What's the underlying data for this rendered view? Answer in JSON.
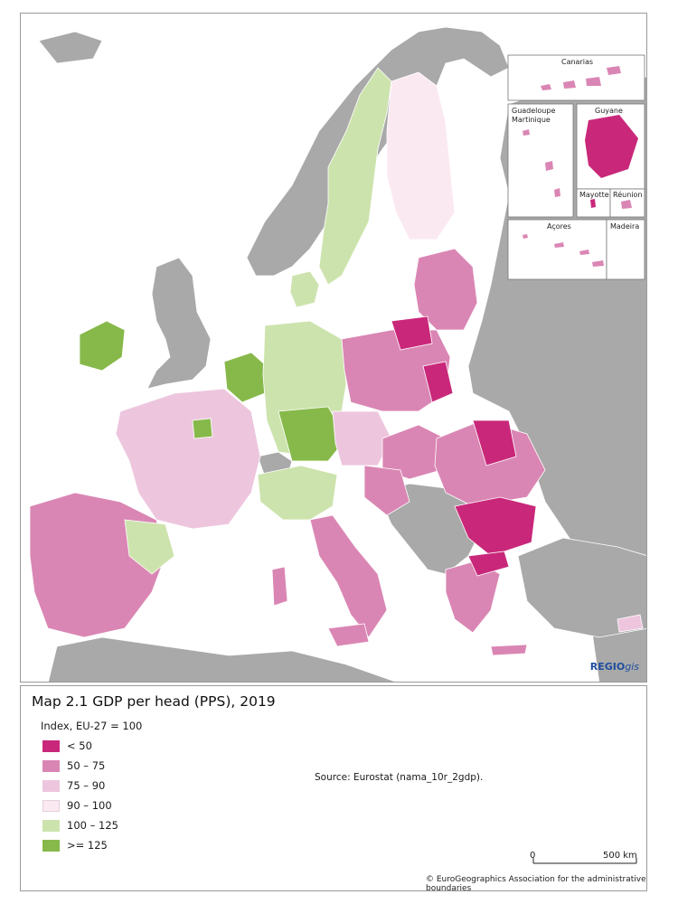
{
  "map": {
    "title": "Map 2.1 GDP per head (PPS), 2019",
    "brand_main": "REGIO",
    "brand_suffix": "gis",
    "insets": [
      "Canarias",
      "Guadeloupe",
      "Martinique",
      "Guyane",
      "Mayotte",
      "Réunion",
      "Açores",
      "Madeira"
    ]
  },
  "legend": {
    "heading": "Index, EU-27 = 100",
    "classes": [
      {
        "label": "< 50",
        "color": "#c9287a"
      },
      {
        "label": "50 – 75",
        "color": "#da86b4"
      },
      {
        "label": "75 – 90",
        "color": "#edc6de"
      },
      {
        "label": "90 – 100",
        "color": "#fbe9f2"
      },
      {
        "label": "100 – 125",
        "color": "#cde3ad"
      },
      {
        "label": ">= 125",
        "color": "#86b94a"
      }
    ]
  },
  "source": "Source: Eurostat (nama_10r_2gdp).",
  "scale": {
    "start": "0",
    "end": "500 km"
  },
  "copyright": "© EuroGeographics Association for the administrative boundaries",
  "colors": {
    "non_eu": "#a9a9a9",
    "sea": "#ffffff",
    "brand": "#1f4e9e"
  }
}
